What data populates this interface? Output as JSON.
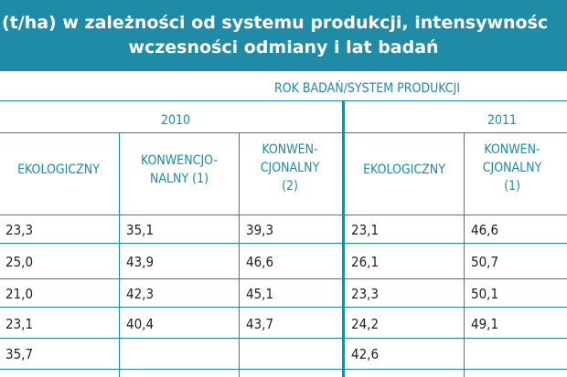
{
  "title": {
    "line1": "(t/ha) w zależności od systemu produkcji, intensywnośc",
    "line2": "wczesności odmiany i lat badań"
  },
  "header": {
    "group": "ROK BADAŃ/SYSTEM PRODUKCJI",
    "year_2010": "2010",
    "year_2011": "2011",
    "columns": [
      "EKOLOGICZNY",
      "KONWENCJO-\nNALNY (1)",
      "KONWEN-\nCJONALNY\n(2)",
      "EKOLOGICZNY",
      "KONWEN-\nCJONALNY\n(1)"
    ]
  },
  "rows": [
    [
      "23,3",
      "35,1",
      "39,3",
      "23,1",
      "46,6"
    ],
    [
      "25,0",
      "43,9",
      "46,6",
      "26,1",
      "50,7"
    ],
    [
      "21,0",
      "42,3",
      "45,1",
      "23,3",
      "50,1"
    ],
    [
      "23,1",
      "40,4",
      "43,7",
      "24,2",
      "49,1"
    ],
    [
      "35,7",
      "",
      "",
      "42,6",
      ""
    ]
  ],
  "colors": {
    "title_band": "#1f8ba6",
    "accent": "#1e8aa3",
    "text": "#222222"
  }
}
